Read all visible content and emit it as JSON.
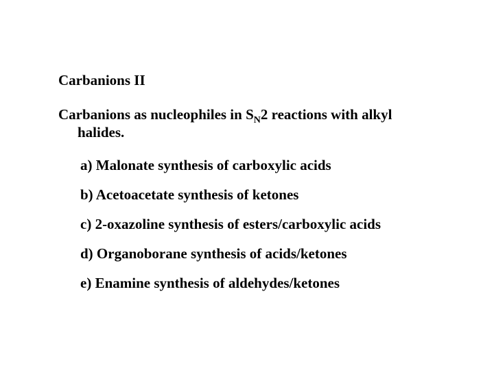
{
  "title": "Carbanions II",
  "subtitle_part1": "Carbanions as nucleophiles in S",
  "subtitle_sub": "N",
  "subtitle_part2": "2 reactions with alkyl",
  "subtitle_line2": "halides.",
  "items": {
    "a": "a)  Malonate synthesis of carboxylic acids",
    "b": "b)  Acetoacetate synthesis of ketones",
    "c": "c)  2-oxazoline synthesis of esters/carboxylic acids",
    "d": "d)  Organoborane synthesis of acids/ketones",
    "e": "e)  Enamine synthesis of aldehydes/ketones"
  },
  "styling": {
    "font_family": "Times New Roman",
    "font_size_pt": 16,
    "font_weight": "bold",
    "text_color": "#000000",
    "background_color": "#ffffff",
    "subscript_size_pt": 11
  }
}
